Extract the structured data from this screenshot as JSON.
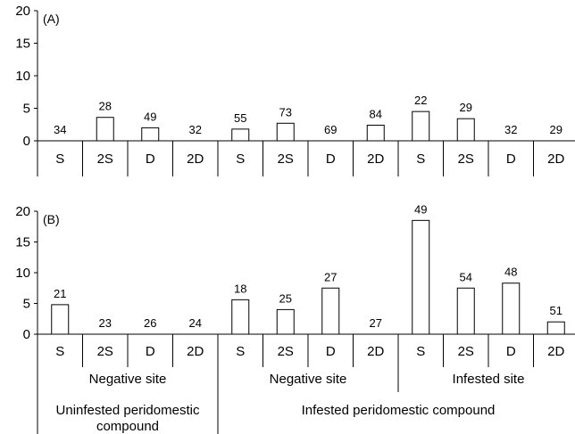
{
  "chart_data": [
    {
      "type": "bar",
      "panel_label": "(A)",
      "categories": [
        "S",
        "2S",
        "D",
        "2D",
        "S",
        "2S",
        "D",
        "2D",
        "S",
        "2S",
        "D",
        "2D"
      ],
      "values": [
        0,
        3.6,
        2.0,
        0,
        1.8,
        2.7,
        0,
        2.4,
        4.5,
        3.4,
        0,
        0
      ],
      "data_labels": [
        "34",
        "28",
        "49",
        "32",
        "55",
        "73",
        "69",
        "84",
        "22",
        "29",
        "32",
        "29"
      ],
      "ylim": [
        0,
        20
      ],
      "yticks": [
        0,
        5,
        10,
        15,
        20
      ],
      "grid": false
    },
    {
      "type": "bar",
      "panel_label": "(B)",
      "categories": [
        "S",
        "2S",
        "D",
        "2D",
        "S",
        "2S",
        "D",
        "2D",
        "S",
        "2S",
        "D",
        "2D"
      ],
      "values": [
        4.8,
        0,
        0,
        0,
        5.6,
        4.0,
        7.5,
        0,
        18.5,
        7.5,
        8.3,
        2.0
      ],
      "data_labels": [
        "21",
        "23",
        "26",
        "24",
        "18",
        "25",
        "27",
        "27",
        "49",
        "54",
        "48",
        "51"
      ],
      "ylim": [
        0,
        20
      ],
      "yticks": [
        0,
        5,
        10,
        15,
        20
      ],
      "grid": false
    }
  ],
  "group_labels": {
    "level1": [
      {
        "text": "Negative site",
        "start": 0,
        "span": 4
      },
      {
        "text": "Negative site",
        "start": 4,
        "span": 4
      },
      {
        "text": "Infested site",
        "start": 8,
        "span": 4
      }
    ],
    "level2": [
      {
        "text": [
          "Uninfested peridomestic",
          "compound"
        ],
        "start": 0,
        "span": 4
      },
      {
        "text": [
          "Infested peridomestic compound"
        ],
        "start": 4,
        "span": 8
      }
    ]
  }
}
